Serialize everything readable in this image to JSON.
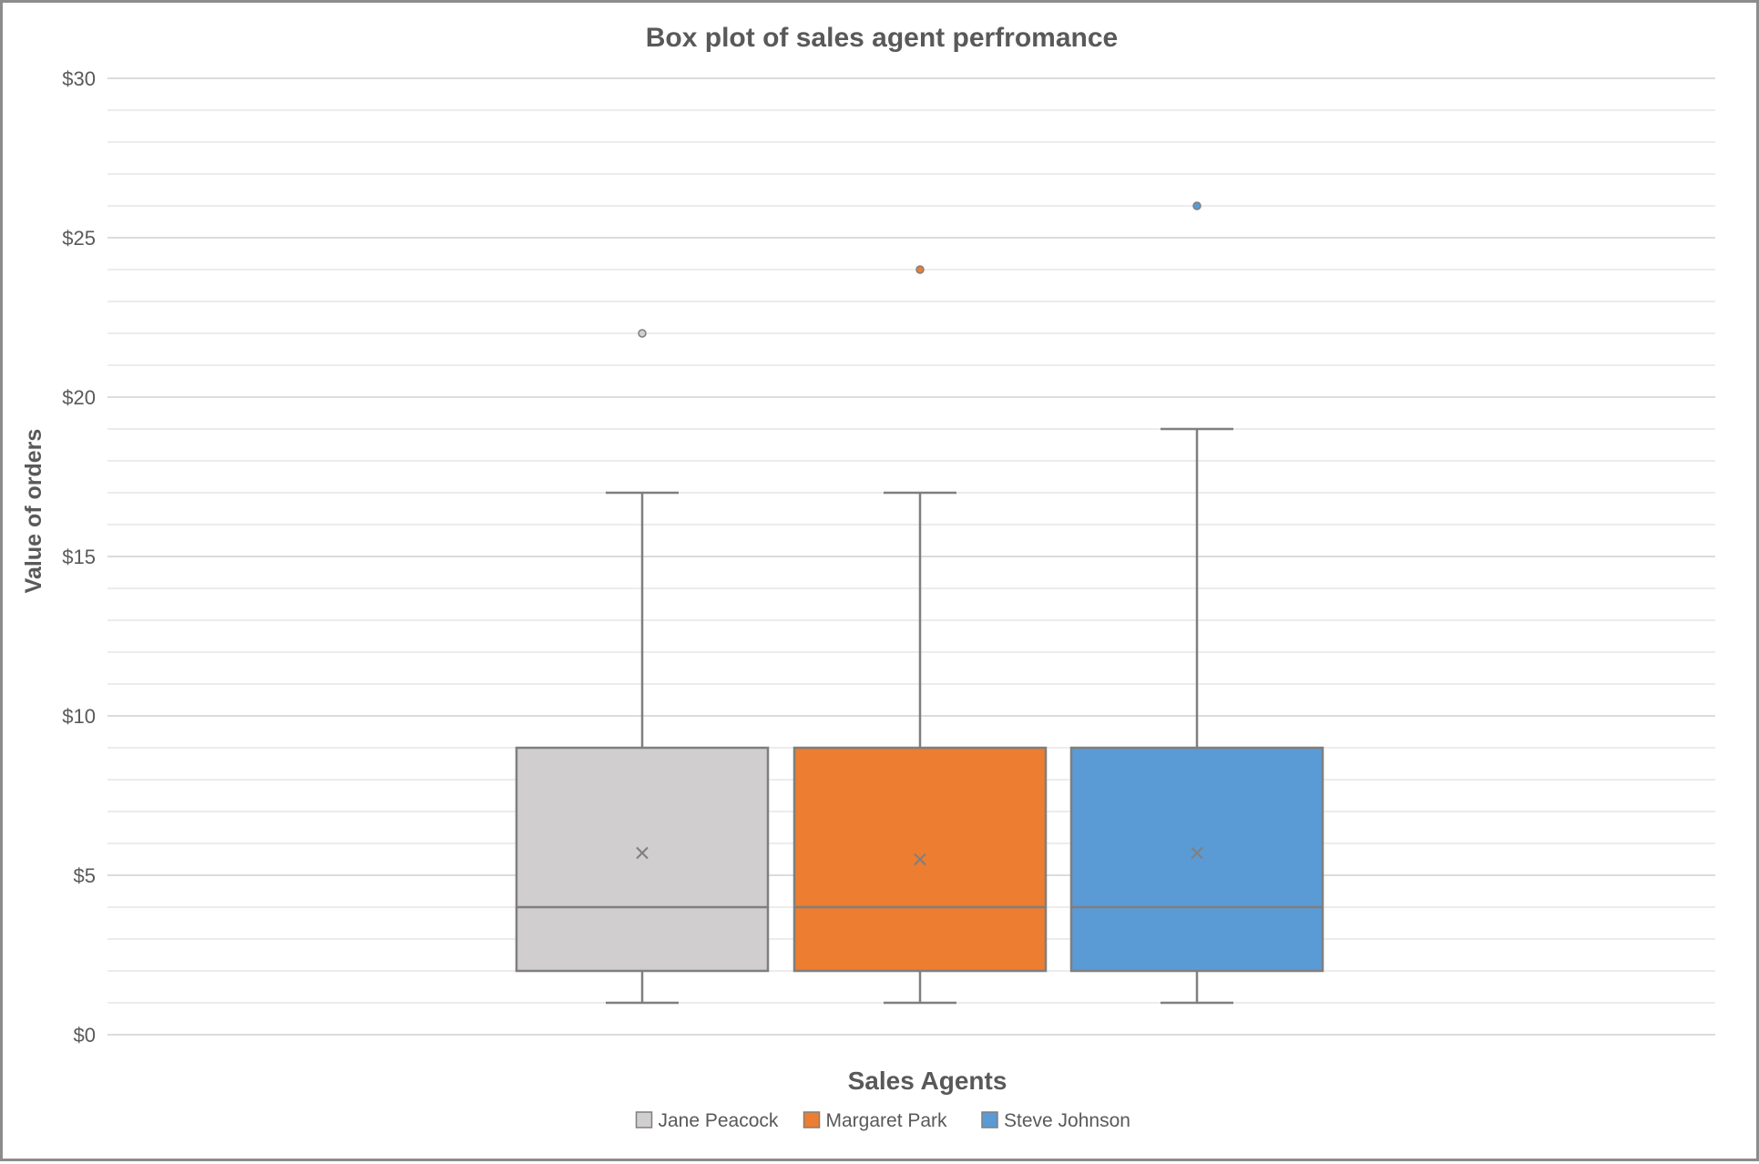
{
  "chart_data": {
    "type": "box",
    "title": "Box plot of sales agent perfromance",
    "xlabel": "Sales Agents",
    "ylabel": "Value of orders",
    "ylim": [
      0,
      30
    ],
    "major_ticks": [
      0,
      5,
      10,
      15,
      20,
      25,
      30
    ],
    "tick_labels": [
      "$0",
      "$5",
      "$10",
      "$15",
      "$20",
      "$25",
      "$30"
    ],
    "minor_gridline_step": 1,
    "grid": true,
    "legend_position": "bottom",
    "series": [
      {
        "name": "Jane Peacock",
        "color": "#d0cece",
        "min": 1,
        "q1": 2,
        "median": 4,
        "q3": 9,
        "max": 17,
        "mean": 5.7,
        "outliers": [
          22
        ]
      },
      {
        "name": "Margaret Park",
        "color": "#ed7d31",
        "min": 1,
        "q1": 2,
        "median": 4,
        "q3": 9,
        "max": 17,
        "mean": 5.5,
        "outliers": [
          24
        ]
      },
      {
        "name": "Steve Johnson",
        "color": "#5b9bd5",
        "min": 1,
        "q1": 2,
        "median": 4,
        "q3": 9,
        "max": 19,
        "mean": 5.7,
        "outliers": [
          26
        ]
      }
    ]
  }
}
